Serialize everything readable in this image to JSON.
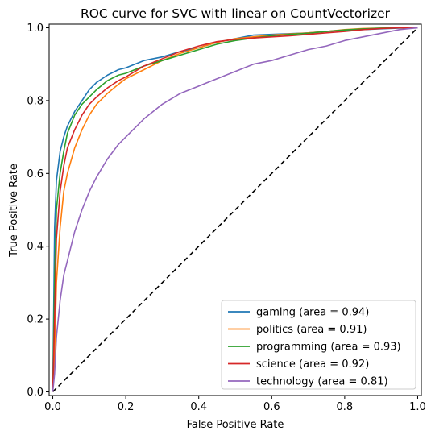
{
  "chart_data": {
    "type": "line",
    "title": "ROC curve for SVC with linear on CountVectorizer",
    "xlabel": "False Positive Rate",
    "ylabel": "True Positive Rate",
    "xlim": [
      -0.01,
      1.01
    ],
    "ylim": [
      -0.01,
      1.01
    ],
    "x_ticks": [
      0.0,
      0.2,
      0.4,
      0.6,
      0.8,
      1.0
    ],
    "x_tick_labels": [
      "0.0",
      "0.2",
      "0.4",
      "0.6",
      "0.8",
      "1.0"
    ],
    "y_ticks": [
      0.0,
      0.2,
      0.4,
      0.6,
      0.8,
      1.0
    ],
    "y_tick_labels": [
      "0.0",
      "0.2",
      "0.4",
      "0.6",
      "0.8",
      "1.0"
    ],
    "grid": false,
    "legend_position": "lower-right",
    "diagonal": {
      "x": [
        0,
        1
      ],
      "y": [
        0,
        1
      ],
      "style": "dashed",
      "color": "#000000"
    },
    "series": [
      {
        "name": "gaming (area = 0.94)",
        "color": "#1f77b4",
        "x": [
          0,
          0.005,
          0.01,
          0.02,
          0.03,
          0.04,
          0.06,
          0.08,
          0.1,
          0.12,
          0.15,
          0.18,
          0.2,
          0.25,
          0.3,
          0.35,
          0.4,
          0.45,
          0.5,
          0.55,
          0.6,
          0.65,
          0.7,
          0.75,
          0.8,
          0.85,
          0.9,
          0.95,
          1.0
        ],
        "y": [
          0,
          0.45,
          0.58,
          0.66,
          0.7,
          0.73,
          0.77,
          0.8,
          0.83,
          0.85,
          0.87,
          0.885,
          0.89,
          0.91,
          0.92,
          0.935,
          0.945,
          0.96,
          0.97,
          0.98,
          0.982,
          0.984,
          0.986,
          0.99,
          0.993,
          0.995,
          0.997,
          0.999,
          1.0
        ]
      },
      {
        "name": "politics (area = 0.91)",
        "color": "#ff7f0e",
        "x": [
          0,
          0.005,
          0.01,
          0.02,
          0.03,
          0.04,
          0.06,
          0.08,
          0.1,
          0.12,
          0.15,
          0.18,
          0.2,
          0.25,
          0.3,
          0.35,
          0.4,
          0.45,
          0.5,
          0.55,
          0.6,
          0.65,
          0.7,
          0.75,
          0.8,
          0.85,
          0.9,
          0.95,
          1.0
        ],
        "y": [
          0,
          0.1,
          0.3,
          0.45,
          0.55,
          0.6,
          0.67,
          0.72,
          0.76,
          0.79,
          0.82,
          0.845,
          0.86,
          0.885,
          0.91,
          0.93,
          0.945,
          0.96,
          0.97,
          0.975,
          0.98,
          0.983,
          0.986,
          0.99,
          0.995,
          0.998,
          0.999,
          1.0,
          1.0
        ]
      },
      {
        "name": "programming (area = 0.93)",
        "color": "#2ca02c",
        "x": [
          0,
          0.005,
          0.01,
          0.02,
          0.03,
          0.04,
          0.06,
          0.08,
          0.1,
          0.12,
          0.15,
          0.18,
          0.2,
          0.25,
          0.3,
          0.35,
          0.4,
          0.45,
          0.5,
          0.55,
          0.6,
          0.65,
          0.7,
          0.75,
          0.8,
          0.85,
          0.9,
          0.95,
          1.0
        ],
        "y": [
          0,
          0.3,
          0.5,
          0.6,
          0.66,
          0.71,
          0.76,
          0.79,
          0.81,
          0.83,
          0.855,
          0.87,
          0.875,
          0.895,
          0.91,
          0.925,
          0.94,
          0.955,
          0.965,
          0.972,
          0.978,
          0.982,
          0.985,
          0.99,
          0.994,
          0.997,
          0.999,
          1.0,
          1.0
        ]
      },
      {
        "name": "science (area = 0.92)",
        "color": "#d62728",
        "x": [
          0,
          0.005,
          0.01,
          0.02,
          0.03,
          0.04,
          0.06,
          0.08,
          0.1,
          0.12,
          0.15,
          0.18,
          0.2,
          0.25,
          0.3,
          0.35,
          0.4,
          0.45,
          0.5,
          0.55,
          0.6,
          0.65,
          0.7,
          0.75,
          0.8,
          0.85,
          0.9,
          0.95,
          1.0
        ],
        "y": [
          0,
          0.2,
          0.42,
          0.55,
          0.62,
          0.67,
          0.72,
          0.76,
          0.79,
          0.81,
          0.835,
          0.855,
          0.865,
          0.895,
          0.915,
          0.935,
          0.95,
          0.962,
          0.968,
          0.972,
          0.975,
          0.978,
          0.982,
          0.986,
          0.99,
          0.995,
          0.998,
          1.0,
          1.0
        ]
      },
      {
        "name": "technology (area = 0.81)",
        "color": "#9467bd",
        "x": [
          0,
          0.005,
          0.01,
          0.02,
          0.03,
          0.04,
          0.06,
          0.08,
          0.1,
          0.12,
          0.15,
          0.18,
          0.2,
          0.25,
          0.3,
          0.35,
          0.4,
          0.45,
          0.5,
          0.55,
          0.6,
          0.65,
          0.7,
          0.75,
          0.8,
          0.85,
          0.9,
          0.95,
          1.0
        ],
        "y": [
          0,
          0.05,
          0.15,
          0.25,
          0.32,
          0.36,
          0.44,
          0.5,
          0.55,
          0.59,
          0.64,
          0.68,
          0.7,
          0.75,
          0.79,
          0.82,
          0.84,
          0.86,
          0.88,
          0.9,
          0.91,
          0.925,
          0.94,
          0.95,
          0.965,
          0.975,
          0.985,
          0.995,
          1.0
        ]
      }
    ]
  }
}
